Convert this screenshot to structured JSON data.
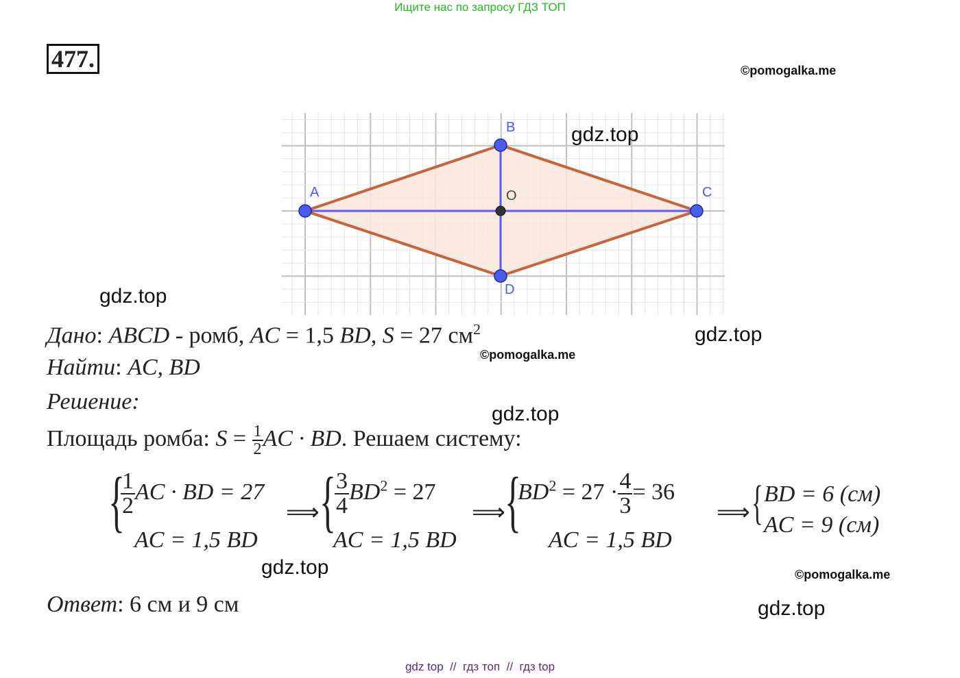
{
  "header": {
    "promo": "Ищите нас по запросу ГДЗ ТОП"
  },
  "problem_number": "477.",
  "watermarks": {
    "gdz": "gdz.top",
    "pomogalka": "©pomogalka.me"
  },
  "diagram": {
    "labels": {
      "A": "A",
      "B": "B",
      "C": "C",
      "D": "D",
      "O": "O"
    },
    "colors": {
      "side": "#c8643c",
      "fill": "#f9e6dc",
      "diagonal": "#5a5aff",
      "point": "#4a5cf0",
      "center": "#333333",
      "grid_major": "#bfbfbf",
      "grid_minor": "#e4e4e4"
    }
  },
  "given": {
    "label": "Дано",
    "text1": "ABCD",
    "text2": " - ромб, ",
    "text3": "AC",
    "text4": " = 1,5 ",
    "text5": "BD",
    "text6": ", ",
    "text7": "S",
    "text8": " = 27 см",
    "sup": "2"
  },
  "find": {
    "label": "Найти",
    "value": "AC, BD"
  },
  "solution": {
    "label": "Решение"
  },
  "area": {
    "prefix": "Площадь ромба: ",
    "S": "S",
    "eq": " = ",
    "num": "1",
    "den": "2",
    "expr": "AC · BD",
    "suffix": ". Решаем систему:"
  },
  "system": {
    "s1": {
      "num": "1",
      "den": "2",
      "row1": "AC · BD = 27",
      "row2": "AC = 1,5 BD"
    },
    "arrow": "⟹",
    "s2": {
      "num": "3",
      "den": "4",
      "row1a": "BD",
      "sup": "2",
      "row1b": " = 27",
      "row2": "AC = 1,5 BD"
    },
    "s3": {
      "row1a": "BD",
      "sup": "2",
      "row1b": " = 27 ·",
      "num": "4",
      "den": "3",
      "row1c": "= 36",
      "row2": "AC = 1,5 BD"
    },
    "s4": {
      "row1": "BD = 6 (см)",
      "row2": "AC = 9 (см)"
    }
  },
  "answer": {
    "label": "Ответ",
    "value": ": 6 см и 9 см"
  },
  "footer": {
    "text": "gdz top  //  гдз топ  //  гдз top"
  }
}
